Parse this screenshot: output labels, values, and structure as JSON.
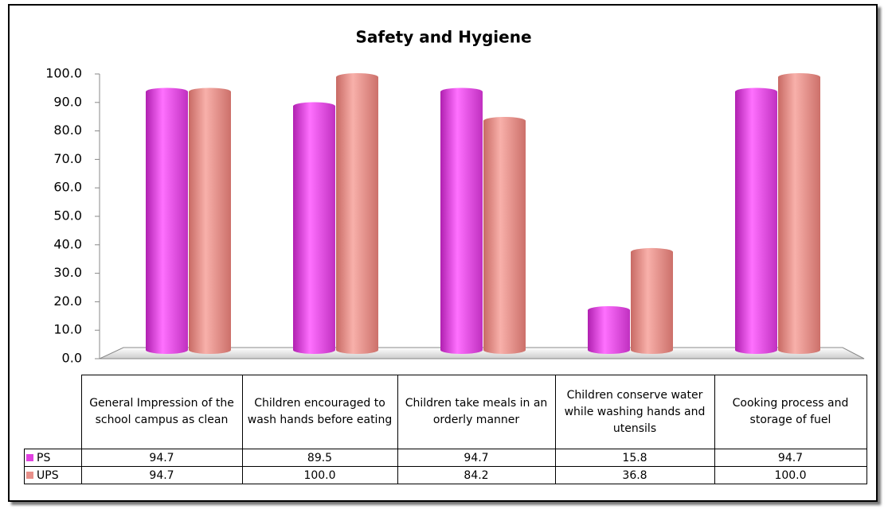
{
  "chart_data": {
    "type": "bar",
    "title": "Safety and Hygiene",
    "categories": [
      "General Impression of the school campus as clean",
      "Children encouraged to wash hands before eating",
      "Children take meals in an orderly manner",
      "Children conserve water while washing hands and utensils",
      "Cooking process and storage of fuel"
    ],
    "series": [
      {
        "name": "PS",
        "color": "#e040e0",
        "values": [
          94.7,
          89.5,
          94.7,
          15.8,
          94.7
        ],
        "value_labels": [
          "94.7",
          "89.5",
          "94.7",
          "15.8",
          "94.7"
        ]
      },
      {
        "name": "UPS",
        "color": "#e8908a",
        "values": [
          94.7,
          100,
          84.2,
          36.8,
          100
        ],
        "value_labels": [
          "94.7",
          "100.0",
          "84.2",
          "36.8",
          "100.0"
        ]
      }
    ],
    "ylim": [
      0,
      100
    ],
    "yticks": [
      {
        "value": 0,
        "label": "0.0"
      },
      {
        "value": 10,
        "label": "10.0"
      },
      {
        "value": 20,
        "label": "20.0"
      },
      {
        "value": 30,
        "label": "30.0"
      },
      {
        "value": 40,
        "label": "40.0"
      },
      {
        "value": 50,
        "label": "50.0"
      },
      {
        "value": 60,
        "label": "60.0"
      },
      {
        "value": 70,
        "label": "70.0"
      },
      {
        "value": 80,
        "label": "80.0"
      },
      {
        "value": 90,
        "label": "90.0"
      },
      {
        "value": 100,
        "label": "100.0"
      }
    ],
    "grid": false
  }
}
